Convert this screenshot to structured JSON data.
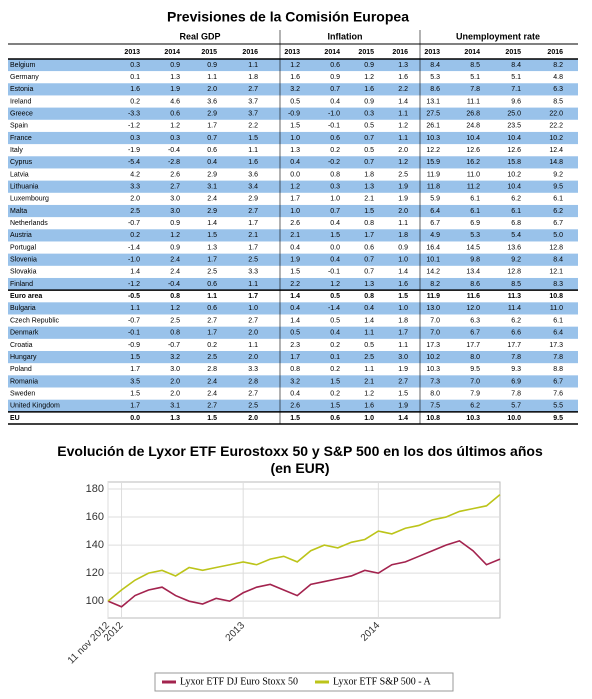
{
  "table": {
    "title": "Previsiones de la Comisión Europea",
    "groups": [
      "Real GDP",
      "Inflation",
      "Unemployment rate"
    ],
    "years": [
      "2013",
      "2014",
      "2015",
      "2016"
    ],
    "rows": [
      [
        "Belgium",
        "0.3",
        "0.9",
        "0.9",
        "1.1",
        "1.2",
        "0.6",
        "0.9",
        "1.3",
        "8.4",
        "8.5",
        "8.4",
        "8.2"
      ],
      [
        "Germany",
        "0.1",
        "1.3",
        "1.1",
        "1.8",
        "1.6",
        "0.9",
        "1.2",
        "1.6",
        "5.3",
        "5.1",
        "5.1",
        "4.8"
      ],
      [
        "Estonia",
        "1.6",
        "1.9",
        "2.0",
        "2.7",
        "3.2",
        "0.7",
        "1.6",
        "2.2",
        "8.6",
        "7.8",
        "7.1",
        "6.3"
      ],
      [
        "Ireland",
        "0.2",
        "4.6",
        "3.6",
        "3.7",
        "0.5",
        "0.4",
        "0.9",
        "1.4",
        "13.1",
        "11.1",
        "9.6",
        "8.5"
      ],
      [
        "Greece",
        "-3.3",
        "0.6",
        "2.9",
        "3.7",
        "-0.9",
        "-1.0",
        "0.3",
        "1.1",
        "27.5",
        "26.8",
        "25.0",
        "22.0"
      ],
      [
        "Spain",
        "-1.2",
        "1.2",
        "1.7",
        "2.2",
        "1.5",
        "-0.1",
        "0.5",
        "1.2",
        "26.1",
        "24.8",
        "23.5",
        "22.2"
      ],
      [
        "France",
        "0.3",
        "0.3",
        "0.7",
        "1.5",
        "1.0",
        "0.6",
        "0.7",
        "1.1",
        "10.3",
        "10.4",
        "10.4",
        "10.2"
      ],
      [
        "Italy",
        "-1.9",
        "-0.4",
        "0.6",
        "1.1",
        "1.3",
        "0.2",
        "0.5",
        "2.0",
        "12.2",
        "12.6",
        "12.6",
        "12.4"
      ],
      [
        "Cyprus",
        "-5.4",
        "-2.8",
        "0.4",
        "1.6",
        "0.4",
        "-0.2",
        "0.7",
        "1.2",
        "15.9",
        "16.2",
        "15.8",
        "14.8"
      ],
      [
        "Latvia",
        "4.2",
        "2.6",
        "2.9",
        "3.6",
        "0.0",
        "0.8",
        "1.8",
        "2.5",
        "11.9",
        "11.0",
        "10.2",
        "9.2"
      ],
      [
        "Lithuania",
        "3.3",
        "2.7",
        "3.1",
        "3.4",
        "1.2",
        "0.3",
        "1.3",
        "1.9",
        "11.8",
        "11.2",
        "10.4",
        "9.5"
      ],
      [
        "Luxembourg",
        "2.0",
        "3.0",
        "2.4",
        "2.9",
        "1.7",
        "1.0",
        "2.1",
        "1.9",
        "5.9",
        "6.1",
        "6.2",
        "6.1"
      ],
      [
        "Malta",
        "2.5",
        "3.0",
        "2.9",
        "2.7",
        "1.0",
        "0.7",
        "1.5",
        "2.0",
        "6.4",
        "6.1",
        "6.1",
        "6.2"
      ],
      [
        "Netherlands",
        "-0.7",
        "0.9",
        "1.4",
        "1.7",
        "2.6",
        "0.4",
        "0.8",
        "1.1",
        "6.7",
        "6.9",
        "6.8",
        "6.7"
      ],
      [
        "Austria",
        "0.2",
        "1.2",
        "1.5",
        "2.1",
        "2.1",
        "1.5",
        "1.7",
        "1.8",
        "4.9",
        "5.3",
        "5.4",
        "5.0"
      ],
      [
        "Portugal",
        "-1.4",
        "0.9",
        "1.3",
        "1.7",
        "0.4",
        "0.0",
        "0.6",
        "0.9",
        "16.4",
        "14.5",
        "13.6",
        "12.8"
      ],
      [
        "Slovenia",
        "-1.0",
        "2.4",
        "1.7",
        "2.5",
        "1.9",
        "0.4",
        "0.7",
        "1.0",
        "10.1",
        "9.8",
        "9.2",
        "8.4"
      ],
      [
        "Slovakia",
        "1.4",
        "2.4",
        "2.5",
        "3.3",
        "1.5",
        "-0.1",
        "0.7",
        "1.4",
        "14.2",
        "13.4",
        "12.8",
        "12.1"
      ],
      [
        "Finland",
        "-1.2",
        "-0.4",
        "0.6",
        "1.1",
        "2.2",
        "1.2",
        "1.3",
        "1.6",
        "8.2",
        "8.6",
        "8.5",
        "8.3"
      ],
      [
        "Euro area",
        "-0.5",
        "0.8",
        "1.1",
        "1.7",
        "1.4",
        "0.5",
        "0.8",
        "1.5",
        "11.9",
        "11.6",
        "11.3",
        "10.8"
      ],
      [
        "Bulgaria",
        "1.1",
        "1.2",
        "0.6",
        "1.0",
        "0.4",
        "-1.4",
        "0.4",
        "1.0",
        "13.0",
        "12.0",
        "11.4",
        "11.0"
      ],
      [
        "Czech Republic",
        "-0.7",
        "2.5",
        "2.7",
        "2.7",
        "1.4",
        "0.5",
        "1.4",
        "1.8",
        "7.0",
        "6.3",
        "6.2",
        "6.1"
      ],
      [
        "Denmark",
        "-0.1",
        "0.8",
        "1.7",
        "2.0",
        "0.5",
        "0.4",
        "1.1",
        "1.7",
        "7.0",
        "6.7",
        "6.6",
        "6.4"
      ],
      [
        "Croatia",
        "-0.9",
        "-0.7",
        "0.2",
        "1.1",
        "2.3",
        "0.2",
        "0.5",
        "1.1",
        "17.3",
        "17.7",
        "17.7",
        "17.3"
      ],
      [
        "Hungary",
        "1.5",
        "3.2",
        "2.5",
        "2.0",
        "1.7",
        "0.1",
        "2.5",
        "3.0",
        "10.2",
        "8.0",
        "7.8",
        "7.8"
      ],
      [
        "Poland",
        "1.7",
        "3.0",
        "2.8",
        "3.3",
        "0.8",
        "0.2",
        "1.1",
        "1.9",
        "10.3",
        "9.5",
        "9.3",
        "8.8"
      ],
      [
        "Romania",
        "3.5",
        "2.0",
        "2.4",
        "2.8",
        "3.2",
        "1.5",
        "2.1",
        "2.7",
        "7.3",
        "7.0",
        "6.9",
        "6.7"
      ],
      [
        "Sweden",
        "1.5",
        "2.0",
        "2.4",
        "2.7",
        "0.4",
        "0.2",
        "1.2",
        "1.5",
        "8.0",
        "7.9",
        "7.8",
        "7.6"
      ],
      [
        "United Kingdom",
        "1.7",
        "3.1",
        "2.7",
        "2.5",
        "2.6",
        "1.5",
        "1.6",
        "1.9",
        "7.5",
        "6.2",
        "5.7",
        "5.5"
      ],
      [
        "EU",
        "0.0",
        "1.3",
        "1.5",
        "2.0",
        "1.5",
        "0.6",
        "1.0",
        "1.4",
        "10.8",
        "10.3",
        "10.0",
        "9.5"
      ]
    ]
  },
  "chart_data": {
    "type": "line",
    "title": "Evolución de Lyxor ETF Eurostoxx 50 y S&P 500 en los dos últimos años (en EUR)",
    "x": [
      2012.0,
      2012.1,
      2012.2,
      2012.3,
      2012.4,
      2012.5,
      2012.6,
      2012.7,
      2012.8,
      2012.9,
      2013.0,
      2013.1,
      2013.2,
      2013.3,
      2013.4,
      2013.5,
      2013.6,
      2013.7,
      2013.8,
      2013.9,
      2014.0,
      2014.1,
      2014.2,
      2014.3,
      2014.4,
      2014.5,
      2014.6,
      2014.7,
      2014.8,
      2014.9
    ],
    "series": [
      {
        "name": "Lyxor ETF DJ Euro Stoxx 50",
        "color": "#a3234e",
        "values": [
          100,
          96,
          104,
          108,
          110,
          104,
          100,
          98,
          102,
          100,
          106,
          110,
          112,
          108,
          104,
          112,
          114,
          116,
          118,
          122,
          120,
          126,
          128,
          132,
          136,
          140,
          143,
          136,
          126,
          130
        ]
      },
      {
        "name": "Lyxor ETF S&P 500 - A",
        "color": "#bcc41a",
        "values": [
          100,
          108,
          115,
          120,
          122,
          118,
          124,
          122,
          124,
          126,
          128,
          126,
          130,
          132,
          128,
          136,
          140,
          138,
          142,
          144,
          150,
          148,
          152,
          154,
          158,
          160,
          164,
          166,
          168,
          176
        ]
      }
    ],
    "xlim": [
      2012.0,
      2014.9
    ],
    "xticks": [
      {
        "value": 2012.0,
        "label": "11 nov 2012"
      },
      {
        "value": 2012.1,
        "label": "2012"
      },
      2013,
      2014
    ],
    "ylim": [
      88,
      185
    ],
    "yticks": [
      100,
      120,
      140,
      160,
      180
    ],
    "grid": true,
    "legend": "bottom"
  }
}
